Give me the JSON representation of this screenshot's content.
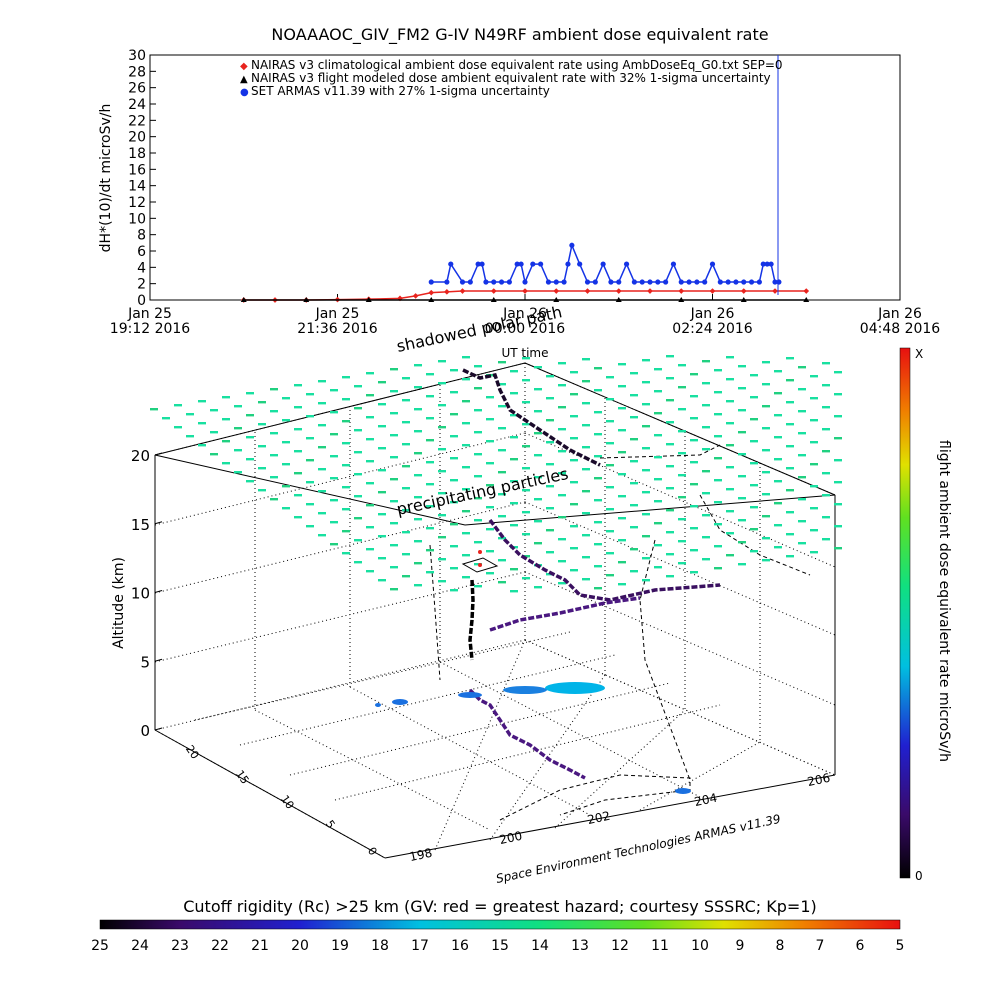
{
  "figure": {
    "title": "NOAAAOC_GIV_FM2 G-IV    N49RF  ambient dose equivalent rate",
    "credit": "Space Environment Technologies ARMAS v11.39"
  },
  "top_chart": {
    "ylabel": "dH*(10)/dt microSv/h",
    "xlabel": "UT time",
    "ylim": [
      0,
      30
    ],
    "y_ticks": [
      "0",
      "2",
      "4",
      "6",
      "8",
      "10",
      "12",
      "14",
      "16",
      "18",
      "20",
      "22",
      "24",
      "26",
      "28",
      "30"
    ],
    "x_ticks": [
      {
        "line1": "Jan 25",
        "line2": "19:12 2016"
      },
      {
        "line1": "Jan 25",
        "line2": "21:36 2016"
      },
      {
        "line1": "Jan 26",
        "line2": "00:00 2016"
      },
      {
        "line1": "Jan 26",
        "line2": "02:24 2016"
      },
      {
        "line1": "Jan 26",
        "line2": "04:48 2016"
      }
    ],
    "legend": [
      {
        "marker": "◆",
        "text": "NAIRAS v3 climatological ambient dose equivalent rate using AmbDoseEq_G0.txt SEP=0",
        "color": "#e8241e"
      },
      {
        "marker": "▲",
        "text": "NAIRAS v3 flight modeled dose ambient equivalent rate with 32% 1-sigma uncertainty",
        "color": "#000000"
      },
      {
        "marker": "●",
        "text": "SET ARMAS v11.39 with 27% 1-sigma uncertainty",
        "color": "#1433e6"
      }
    ]
  },
  "chart_data": [
    {
      "type": "line",
      "title": "NOAAAOC_GIV_FM2 G-IV    N49RF  ambient dose equivalent rate",
      "xlabel": "UT time",
      "ylabel": "dH*(10)/dt microSv/h",
      "x_unit": "hours after 2016-01-25 19:12 UT",
      "xlim": [
        0,
        9.6
      ],
      "ylim": [
        0,
        30
      ],
      "series": [
        {
          "name": "NAIRAS v3 climatological ambient dose equivalent rate using AmbDoseEq_G0.txt SEP=0",
          "color": "#e8241e",
          "x": [
            1.2,
            1.6,
            2.0,
            2.4,
            2.8,
            3.2,
            3.4,
            3.6,
            3.8,
            4.0,
            4.4,
            4.8,
            5.2,
            5.6,
            6.0,
            6.4,
            6.8,
            7.2,
            7.6,
            8.0,
            8.4
          ],
          "y": [
            0,
            0,
            0,
            0.05,
            0.1,
            0.2,
            0.5,
            0.9,
            1.0,
            1.1,
            1.1,
            1.1,
            1.1,
            1.1,
            1.1,
            1.1,
            1.1,
            1.1,
            1.1,
            1.1,
            1.1
          ]
        },
        {
          "name": "NAIRAS v3 flight modeled dose ambient equivalent rate with 32% 1-sigma uncertainty",
          "color": "#000000",
          "x": [
            1.2,
            2.0,
            2.8,
            3.6,
            4.4,
            5.2,
            6.0,
            6.8,
            7.6,
            8.4
          ],
          "y": [
            0,
            0,
            0,
            0,
            0,
            0,
            0,
            0,
            0,
            0
          ]
        },
        {
          "name": "SET ARMAS v11.39 with 27% 1-sigma uncertainty",
          "color": "#1433e6",
          "x": [
            3.6,
            3.8,
            3.85,
            4.0,
            4.1,
            4.2,
            4.25,
            4.3,
            4.4,
            4.5,
            4.6,
            4.7,
            4.75,
            4.8,
            4.9,
            5.0,
            5.1,
            5.2,
            5.3,
            5.35,
            5.4,
            5.5,
            5.6,
            5.7,
            5.8,
            5.9,
            6.0,
            6.1,
            6.2,
            6.3,
            6.4,
            6.5,
            6.6,
            6.7,
            6.8,
            6.9,
            7.0,
            7.1,
            7.2,
            7.3,
            7.4,
            7.5,
            7.6,
            7.7,
            7.8,
            7.85,
            7.9,
            7.95,
            8.0,
            8.05
          ],
          "y": [
            2.2,
            2.2,
            4.4,
            2.2,
            2.2,
            4.4,
            4.4,
            2.2,
            2.2,
            2.2,
            2.2,
            4.4,
            4.4,
            2.2,
            4.4,
            4.4,
            2.2,
            2.2,
            2.2,
            4.4,
            6.7,
            4.4,
            2.2,
            2.2,
            4.4,
            2.2,
            2.2,
            4.4,
            2.2,
            2.2,
            2.2,
            2.2,
            2.2,
            4.4,
            2.2,
            2.2,
            2.2,
            2.2,
            4.4,
            2.2,
            2.2,
            2.2,
            2.2,
            2.2,
            2.2,
            4.4,
            4.4,
            4.4,
            2.2,
            2.2
          ]
        }
      ]
    },
    {
      "type": "scatter",
      "title": "",
      "xlabel": "",
      "ylabel": "Altitude (km)",
      "zlim": [
        0,
        20
      ],
      "z_ticks": [
        "0",
        "5",
        "10",
        "15",
        "20"
      ],
      "x_ticks": [
        "198",
        "200",
        "202",
        "204",
        "206"
      ],
      "y_ticks": [
        "0",
        "5",
        "10",
        "15",
        "20"
      ],
      "annotations": [
        "shadowed polar path",
        "precipitating particles"
      ],
      "colorbar": {
        "label": "flight ambient dose equivalent rate microSv/h",
        "top": "X",
        "bottom": "0"
      },
      "cutoff_bar": {
        "label": "Cutoff rigidity (Rc) >25 km (GV: red = greatest hazard; courtesy SSSRC; Kp=1)",
        "ticks": [
          "25",
          "24",
          "23",
          "22",
          "21",
          "20",
          "19",
          "18",
          "17",
          "16",
          "15",
          "14",
          "13",
          "12",
          "11",
          "10",
          "9",
          "8",
          "7",
          "6",
          "5"
        ]
      }
    }
  ],
  "colors": {
    "rigidity_grid": "#18e0a0",
    "blue_patch": "#00b4e8",
    "flight_track_dark": "#1a0a2a",
    "flight_track_purple": "#4a1880"
  }
}
